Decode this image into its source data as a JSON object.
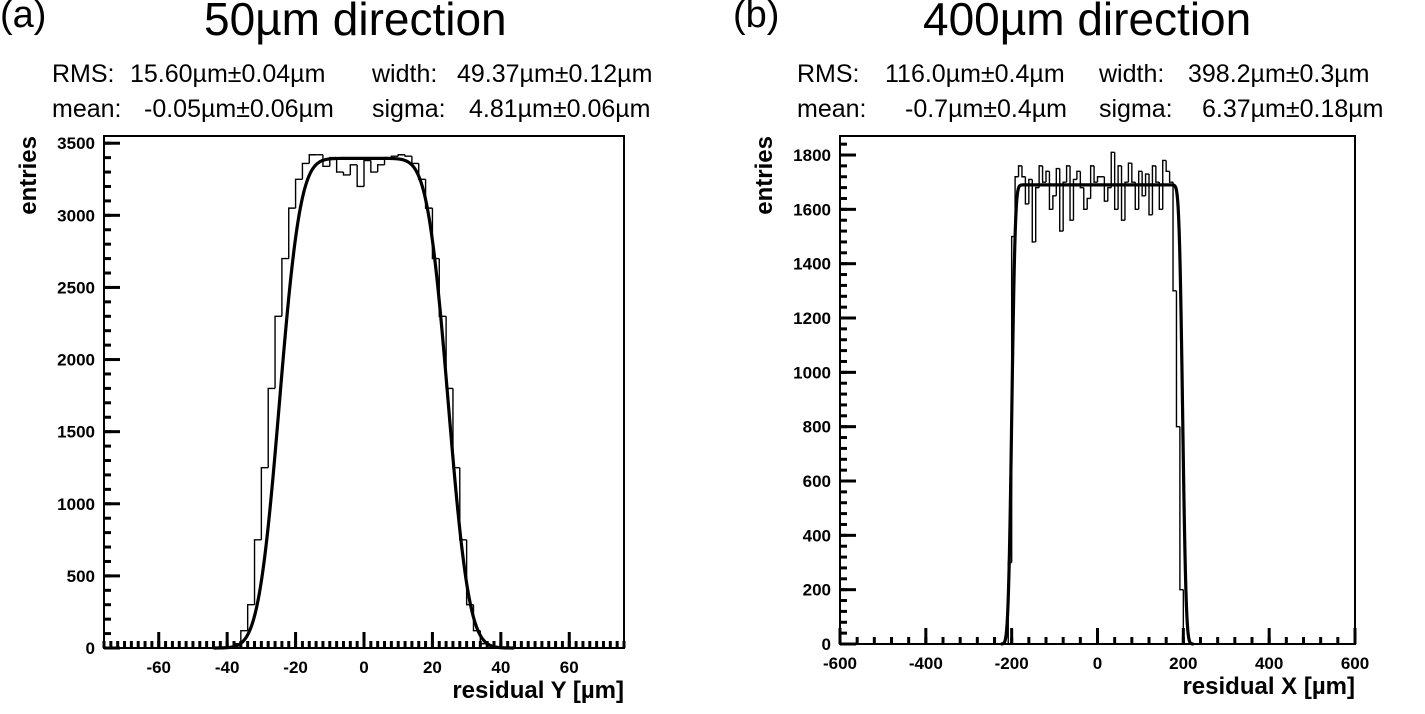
{
  "panels": [
    {
      "label": "(a)",
      "title": "50µm direction",
      "stats": {
        "rms_label": "RMS:",
        "rms_value": "15.60µm±0.04µm",
        "width_label": "width:",
        "width_value": "49.37µm±0.12µm",
        "mean_label": "mean:",
        "mean_value": "-0.05µm±0.06µm",
        "sigma_label": "sigma:",
        "sigma_value": "4.81µm±0.06µm"
      }
    },
    {
      "label": "(b)",
      "title": "400µm direction",
      "stats": {
        "rms_label": "RMS:",
        "rms_value": "116.0µm±0.4µm",
        "width_label": "width:",
        "width_value": "398.2µm±0.3µm",
        "mean_label": "mean:",
        "mean_value": "-0.7µm±0.4µm",
        "sigma_label": "sigma:",
        "sigma_value": "6.37µm±0.18µm"
      }
    }
  ],
  "chart_data": [
    {
      "type": "histogram",
      "title": "50µm direction",
      "xlabel": "residual Y [µm]",
      "ylabel": "entries",
      "xlim": [
        -76,
        76
      ],
      "ylim": [
        0,
        3550
      ],
      "xticks": [
        -60,
        -40,
        -20,
        0,
        20,
        40,
        60
      ],
      "xtick_labels": [
        "-60",
        "-40",
        "-20",
        "0",
        "20",
        "40",
        "60"
      ],
      "yticks": [
        0,
        500,
        1000,
        1500,
        2000,
        2500,
        3000,
        3500
      ],
      "ytick_labels": [
        "0",
        "500",
        "1000",
        "1500",
        "2000",
        "2500",
        "3000",
        "3500"
      ],
      "bin_edges": [
        -40,
        -38,
        -36,
        -34,
        -32,
        -30,
        -28,
        -26,
        -24,
        -22,
        -20,
        -18,
        -16,
        -14,
        -12,
        -10,
        -8,
        -6,
        -4,
        -2,
        0,
        2,
        4,
        6,
        8,
        10,
        12,
        14,
        16,
        18,
        20,
        22,
        24,
        26,
        28,
        30,
        32,
        34,
        36,
        38
      ],
      "values": [
        0,
        30,
        120,
        300,
        750,
        1250,
        1800,
        2300,
        2700,
        3050,
        3250,
        3360,
        3420,
        3420,
        3340,
        3400,
        3300,
        3280,
        3350,
        3200,
        3380,
        3300,
        3350,
        3400,
        3410,
        3420,
        3410,
        3360,
        3250,
        3050,
        2700,
        2300,
        1800,
        1250,
        750,
        300,
        120,
        30,
        0
      ],
      "fit": {
        "name": "box convolved with gaussian",
        "amplitude": 3395,
        "center": -0.05,
        "width": 49.37,
        "sigma": 4.81
      }
    },
    {
      "type": "histogram",
      "title": "400µm direction",
      "xlabel": "residual X [µm]",
      "ylabel": "entries",
      "xlim": [
        -600,
        600
      ],
      "ylim": [
        0,
        1870
      ],
      "xticks": [
        -600,
        -400,
        -200,
        0,
        200,
        400,
        600
      ],
      "xtick_labels": [
        "-600",
        "-400",
        "-200",
        "0",
        "200",
        "400",
        "600"
      ],
      "yticks": [
        0,
        200,
        400,
        600,
        800,
        1000,
        1200,
        1400,
        1600,
        1800
      ],
      "ytick_labels": [
        "0",
        "200",
        "400",
        "600",
        "800",
        "1000",
        "1200",
        "1400",
        "1600",
        "1800"
      ],
      "bin_edges": [
        -216,
        -208,
        -200,
        -192,
        -184,
        -176,
        -168,
        -160,
        -152,
        -144,
        -136,
        -128,
        -120,
        -112,
        -104,
        -96,
        -88,
        -80,
        -72,
        -64,
        -56,
        -48,
        -40,
        -32,
        -24,
        -16,
        -8,
        0,
        8,
        16,
        24,
        32,
        40,
        48,
        56,
        64,
        72,
        80,
        88,
        96,
        104,
        112,
        120,
        128,
        136,
        144,
        152,
        160,
        168,
        176,
        184,
        192,
        200,
        208,
        216
      ],
      "values": [
        0,
        300,
        1500,
        1720,
        1760,
        1720,
        1620,
        1710,
        1480,
        1680,
        1760,
        1700,
        1740,
        1600,
        1650,
        1750,
        1520,
        1700,
        1760,
        1560,
        1710,
        1740,
        1680,
        1600,
        1640,
        1760,
        1700,
        1720,
        1720,
        1630,
        1680,
        1810,
        1600,
        1760,
        1560,
        1700,
        1770,
        1700,
        1600,
        1740,
        1650,
        1730,
        1580,
        1760,
        1700,
        1600,
        1780,
        1740,
        1700,
        1300,
        800,
        200,
        0,
        0
      ],
      "fit": {
        "name": "box convolved with gaussian",
        "amplitude": 1690,
        "center": -0.7,
        "width": 398.2,
        "sigma": 6.37
      }
    }
  ]
}
